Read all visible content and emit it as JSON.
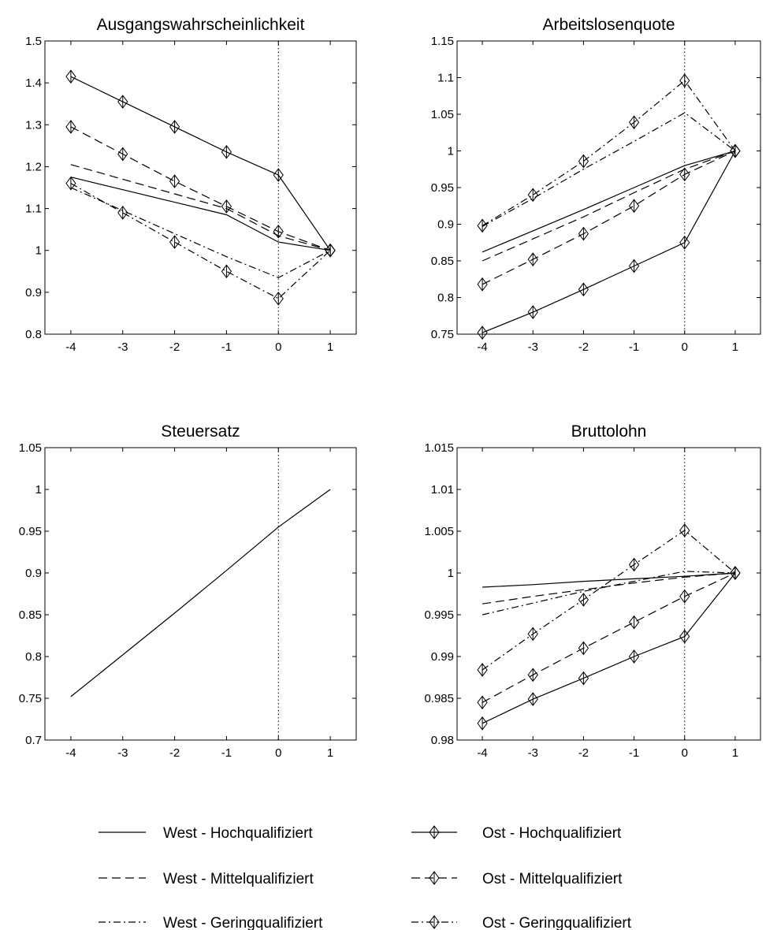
{
  "chart_data": [
    {
      "type": "line",
      "title": "Ausgangswahrscheinlichkeit",
      "x": [
        -4,
        -3,
        -2,
        -1,
        0,
        1
      ],
      "xticks": [
        "-4",
        "-3",
        "-2",
        "-1",
        "0",
        "1"
      ],
      "ylim": [
        0.8,
        1.5
      ],
      "yticks": [
        "0.8",
        "0.9",
        "1",
        "1.1",
        "1.2",
        "1.3",
        "1.4",
        "1.5"
      ],
      "vline_x": 0,
      "series": [
        {
          "name": "West - Hochqualifiziert",
          "values": [
            1.175,
            1.145,
            1.115,
            1.085,
            1.02,
            1.0
          ]
        },
        {
          "name": "West - Mittelqualifiziert",
          "values": [
            1.205,
            1.17,
            1.135,
            1.1,
            1.035,
            1.0
          ]
        },
        {
          "name": "West - Geringqualifiziert",
          "values": [
            1.15,
            1.095,
            1.04,
            0.985,
            0.935,
            1.0
          ]
        },
        {
          "name": "Ost - Hochqualifiziert",
          "values": [
            1.415,
            1.355,
            1.295,
            1.235,
            1.18,
            1.0
          ]
        },
        {
          "name": "Ost - Mittelqualifiziert",
          "values": [
            1.295,
            1.23,
            1.165,
            1.105,
            1.045,
            1.0
          ]
        },
        {
          "name": "Ost - Geringqualifiziert",
          "values": [
            1.16,
            1.09,
            1.02,
            0.95,
            0.885,
            1.0
          ]
        }
      ]
    },
    {
      "type": "line",
      "title": "Arbeitslosenquote",
      "x": [
        -4,
        -3,
        -2,
        -1,
        0,
        1
      ],
      "xticks": [
        "-4",
        "-3",
        "-2",
        "-1",
        "0",
        "1"
      ],
      "ylim": [
        0.75,
        1.15
      ],
      "yticks": [
        "0.75",
        "0.8",
        "0.85",
        "0.9",
        "0.95",
        "1",
        "1.05",
        "1.1",
        "1.15"
      ],
      "vline_x": 0,
      "series": [
        {
          "name": "West - Hochqualifiziert",
          "values": [
            0.862,
            0.891,
            0.92,
            0.95,
            0.98,
            1.0
          ]
        },
        {
          "name": "West - Mittelqualifiziert",
          "values": [
            0.85,
            0.88,
            0.91,
            0.943,
            0.975,
            1.0
          ]
        },
        {
          "name": "West - Geringqualifiziert",
          "values": [
            0.897,
            0.935,
            0.975,
            1.013,
            1.052,
            1.0
          ]
        },
        {
          "name": "Ost - Hochqualifiziert",
          "values": [
            0.752,
            0.78,
            0.811,
            0.843,
            0.875,
            1.0
          ]
        },
        {
          "name": "Ost - Mittelqualifiziert",
          "values": [
            0.818,
            0.852,
            0.887,
            0.925,
            0.968,
            1.0
          ]
        },
        {
          "name": "Ost - Geringqualifiziert",
          "values": [
            0.898,
            0.94,
            0.986,
            1.039,
            1.096,
            1.0
          ]
        }
      ]
    },
    {
      "type": "line",
      "title": "Steuersatz",
      "x": [
        -4,
        -3,
        -2,
        -1,
        0,
        1
      ],
      "xticks": [
        "-4",
        "-3",
        "-2",
        "-1",
        "0",
        "1"
      ],
      "ylim": [
        0.7,
        1.05
      ],
      "yticks": [
        "0.7",
        "0.75",
        "0.8",
        "0.85",
        "0.9",
        "0.95",
        "1",
        "1.05"
      ],
      "vline_x": 0,
      "series": [
        {
          "name": "West - Hochqualifiziert",
          "values": [
            0.752,
            0.802,
            0.852,
            0.903,
            0.955,
            1.0
          ]
        }
      ]
    },
    {
      "type": "line",
      "title": "Bruttolohn",
      "x": [
        -4,
        -3,
        -2,
        -1,
        0,
        1
      ],
      "xticks": [
        "-4",
        "-3",
        "-2",
        "-1",
        "0",
        "1"
      ],
      "ylim": [
        0.98,
        1.015
      ],
      "yticks": [
        "0.98",
        "0.985",
        "0.99",
        "0.995",
        "1",
        "1.005",
        "1.01",
        "1.015"
      ],
      "vline_x": 0,
      "series": [
        {
          "name": "West - Hochqualifiziert",
          "values": [
            0.9983,
            0.9986,
            0.999,
            0.9993,
            0.9996,
            1.0
          ]
        },
        {
          "name": "West - Mittelqualifiziert",
          "values": [
            0.9963,
            0.9972,
            0.998,
            0.9988,
            0.9995,
            1.0
          ]
        },
        {
          "name": "West - Geringqualifiziert",
          "values": [
            0.995,
            0.9964,
            0.9978,
            0.999,
            1.0002,
            1.0
          ]
        },
        {
          "name": "Ost - Hochqualifiziert",
          "values": [
            0.982,
            0.9849,
            0.9874,
            0.99,
            0.9924,
            1.0
          ]
        },
        {
          "name": "Ost - Mittelqualifiziert",
          "values": [
            0.9845,
            0.9878,
            0.991,
            0.9941,
            0.9972,
            1.0
          ]
        },
        {
          "name": "Ost - Geringqualifiziert",
          "values": [
            0.9884,
            0.9927,
            0.9968,
            1.001,
            1.0051,
            1.0
          ]
        }
      ]
    }
  ],
  "legend": {
    "items": [
      {
        "label": "West - Hochqualifiziert",
        "style": "solid",
        "marker": false
      },
      {
        "label": "West - Mittelqualifiziert",
        "style": "dashed",
        "marker": false
      },
      {
        "label": "West - Geringqualifiziert",
        "style": "dashdot",
        "marker": false
      },
      {
        "label": "Ost - Hochqualifiziert",
        "style": "solid",
        "marker": true
      },
      {
        "label": "Ost - Mittelqualifiziert",
        "style": "dashed",
        "marker": true
      },
      {
        "label": "Ost - Geringqualifiziert",
        "style": "dashdot",
        "marker": true
      }
    ]
  },
  "colors": {
    "line": "#000000",
    "background": "#ffffff"
  }
}
